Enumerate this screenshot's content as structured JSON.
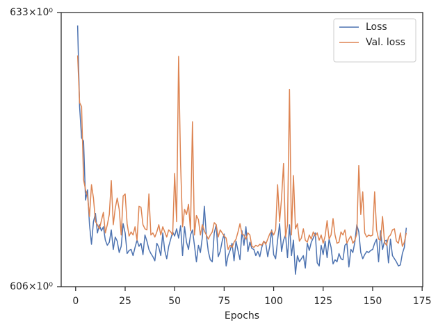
{
  "chart_data": {
    "type": "line",
    "xlabel": "Epochs",
    "xlim": [
      -7.3,
      175.3
    ],
    "xticks": [
      0,
      25,
      50,
      75,
      100,
      125,
      150,
      175
    ],
    "ylim": [
      606,
      633
    ],
    "yscale": "log",
    "yticks": [
      {
        "value": 606,
        "label": "606×10⁰"
      },
      {
        "value": 633,
        "label": "633×10⁰"
      }
    ],
    "legend": "upper right",
    "x": [
      1,
      2,
      3,
      4,
      5,
      6,
      7,
      8,
      9,
      10,
      11,
      12,
      13,
      14,
      15,
      16,
      17,
      18,
      19,
      20,
      21,
      22,
      23,
      24,
      25,
      26,
      27,
      28,
      29,
      30,
      31,
      32,
      33,
      34,
      35,
      36,
      37,
      38,
      39,
      40,
      41,
      42,
      43,
      44,
      45,
      46,
      47,
      48,
      49,
      50,
      51,
      52,
      53,
      54,
      55,
      56,
      57,
      58,
      59,
      60,
      61,
      62,
      63,
      64,
      65,
      66,
      67,
      68,
      69,
      70,
      71,
      72,
      73,
      74,
      75,
      76,
      77,
      78,
      79,
      80,
      81,
      82,
      83,
      84,
      85,
      86,
      87,
      88,
      89,
      90,
      91,
      92,
      93,
      94,
      95,
      96,
      97,
      98,
      99,
      100,
      101,
      102,
      103,
      104,
      105,
      106,
      107,
      108,
      109,
      110,
      111,
      112,
      113,
      114,
      115,
      116,
      117,
      118,
      119,
      120,
      121,
      122,
      123,
      124,
      125,
      126,
      127,
      128,
      129,
      130,
      131,
      132,
      133,
      134,
      135,
      136,
      137,
      138,
      139,
      140,
      141,
      142,
      143,
      144,
      145,
      146,
      147,
      148,
      149,
      150,
      151,
      152,
      153,
      154,
      155,
      156,
      157,
      158,
      159,
      160,
      161,
      162,
      163,
      164,
      165,
      166,
      167
    ],
    "series": [
      {
        "name": "Loss",
        "color": "#4c72b0",
        "values": [
          631.7,
          623.6,
          620.5,
          620.2,
          614.4,
          615.4,
          612.0,
          610.1,
          612.3,
          613.1,
          611.2,
          612.0,
          611.4,
          611.8,
          610.5,
          610.0,
          610.3,
          611.5,
          609.6,
          610.8,
          610.4,
          609.3,
          609.9,
          612.1,
          611.2,
          609.2,
          609.5,
          609.6,
          609.0,
          609.8,
          610.5,
          609.9,
          610.2,
          609.1,
          611.0,
          610.4,
          609.6,
          609.2,
          608.9,
          608.5,
          610.2,
          609.8,
          609.0,
          611.2,
          609.5,
          608.7,
          609.9,
          610.6,
          611.3,
          610.9,
          611.6,
          610.7,
          611.9,
          609.0,
          611.8,
          610.3,
          609.6,
          611.0,
          611.5,
          610.0,
          608.4,
          610.0,
          609.3,
          610.8,
          613.8,
          611.0,
          609.4,
          608.6,
          608.4,
          611.2,
          612.0,
          608.9,
          609.4,
          610.4,
          611.1,
          608.0,
          609.0,
          609.5,
          610.2,
          608.5,
          610.4,
          609.5,
          608.6,
          611.4,
          610.0,
          611.8,
          609.4,
          610.3,
          609.7,
          609.6,
          609.0,
          609.4,
          608.9,
          609.8,
          610.4,
          610.2,
          608.9,
          609.9,
          611.5,
          609.1,
          608.7,
          610.5,
          612.1,
          609.4,
          610.5,
          611.0,
          608.8,
          612.0,
          609.0,
          610.5,
          607.2,
          609.0,
          608.4,
          608.7,
          609.0,
          607.8,
          610.2,
          609.5,
          610.3,
          610.7,
          611.2,
          608.3,
          608.0,
          610.0,
          609.1,
          610.4,
          608.8,
          610.6,
          609.8,
          608.2,
          608.6,
          608.4,
          609.2,
          608.7,
          608.6,
          610.0,
          610.2,
          607.9,
          609.6,
          609.3,
          610.3,
          612.0,
          611.3,
          609.3,
          608.7,
          609.1,
          609.4,
          609.3,
          609.5,
          609.6,
          610.2,
          610.6,
          608.4,
          611.4,
          609.6,
          610.4,
          610.5,
          608.3,
          610.6,
          609.0,
          608.7,
          608.4,
          608.0,
          608.1,
          609.2,
          609.8,
          611.7
        ]
      },
      {
        "name": "Val. loss",
        "color": "#dd8452",
        "values": [
          628.7,
          624.0,
          623.6,
          616.4,
          615.4,
          614.8,
          612.8,
          615.9,
          614.6,
          612.3,
          612.0,
          611.6,
          612.4,
          613.2,
          611.2,
          612.0,
          613.0,
          616.3,
          612.0,
          613.6,
          614.6,
          613.5,
          611.0,
          614.8,
          615.0,
          612.1,
          610.9,
          611.3,
          611.0,
          611.8,
          610.5,
          613.8,
          613.7,
          612.0,
          611.6,
          611.5,
          615.0,
          611.0,
          611.2,
          610.8,
          611.3,
          612.0,
          611.0,
          611.8,
          611.3,
          610.8,
          611.5,
          611.3,
          611.0,
          617.0,
          612.3,
          628.6,
          618.0,
          611.8,
          613.5,
          613.0,
          614.0,
          611.4,
          622.1,
          611.0,
          612.9,
          612.5,
          611.0,
          612.0,
          611.4,
          611.0,
          610.6,
          611.0,
          611.3,
          612.2,
          612.0,
          610.8,
          611.5,
          611.2,
          610.9,
          610.7,
          609.6,
          610.0,
          609.8,
          610.3,
          610.6,
          611.3,
          612.1,
          611.1,
          611.0,
          610.6,
          611.2,
          611.0,
          609.9,
          609.8,
          610.0,
          609.9,
          610.1,
          610.0,
          610.4,
          610.1,
          610.6,
          611.1,
          611.4,
          611.0,
          611.5,
          615.9,
          612.3,
          614.6,
          618.0,
          610.8,
          612.0,
          625.3,
          611.0,
          616.8,
          611.6,
          612.1,
          610.4,
          610.7,
          611.6,
          610.5,
          610.3,
          611.0,
          610.6,
          611.3,
          610.9,
          611.2,
          610.5,
          611.0,
          610.2,
          610.9,
          612.4,
          610.6,
          611.0,
          612.6,
          611.0,
          610.2,
          610.3,
          611.3,
          611.0,
          611.5,
          610.2,
          610.6,
          610.9,
          610.2,
          610.5,
          611.1,
          617.8,
          613.0,
          615.2,
          611.2,
          610.8,
          611.0,
          610.9,
          611.0,
          615.2,
          611.5,
          610.6,
          610.5,
          612.8,
          610.3,
          610.0,
          610.8,
          611.0,
          611.5,
          611.6,
          610.4,
          610.2,
          611.2,
          609.9,
          610.3,
          611.2
        ]
      }
    ]
  }
}
